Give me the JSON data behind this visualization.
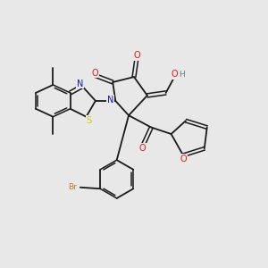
{
  "bg_color": "#e8e8e8",
  "bond_color": "#1a1a1a",
  "atom_colors": {
    "N": "#1010ee",
    "O": "#ee1010",
    "S": "#cccc00",
    "Br": "#cc7722",
    "HO": "#558888",
    "C": "#1a1a1a"
  },
  "lw": 1.3,
  "lw_d": 1.1
}
